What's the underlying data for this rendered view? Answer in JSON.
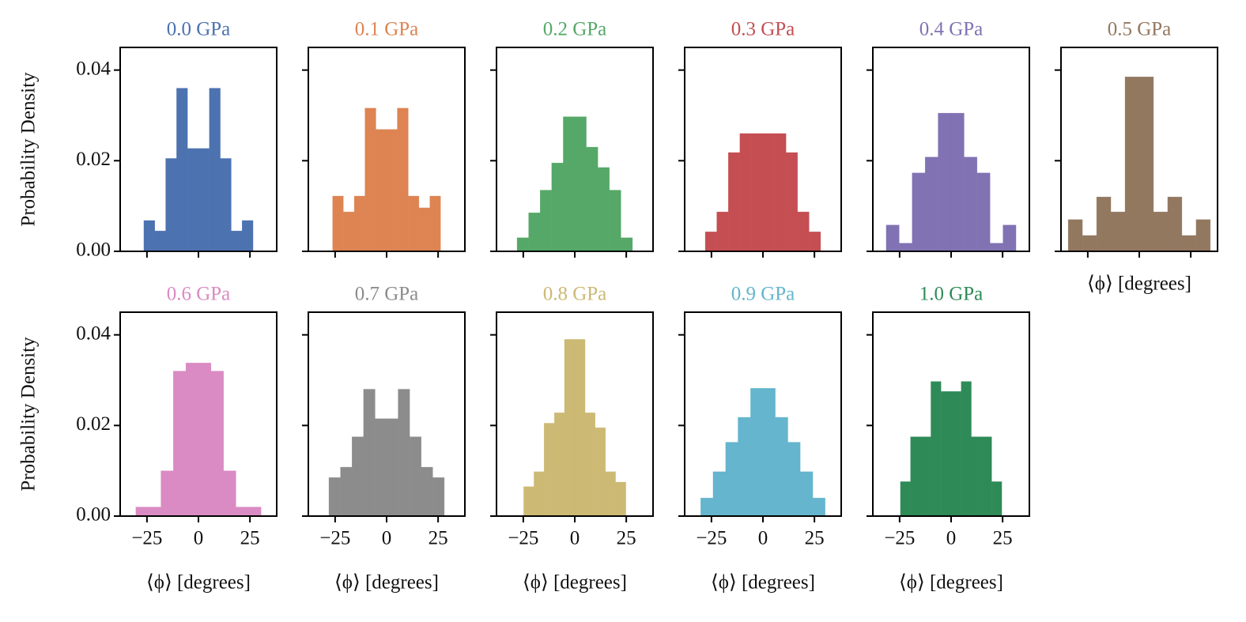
{
  "chart_data": [
    {
      "type": "histogram",
      "title": "0.0 GPa",
      "color": "#4c72b0",
      "ylabel": "Probability Density",
      "show_xtick_labels": false,
      "show_ytick_labels": true,
      "bins": [
        -26.5,
        -21.2,
        -15.9,
        -10.6,
        -5.3,
        0,
        5.3,
        10.6,
        15.9,
        21.2,
        26.5
      ],
      "values": [
        0.0068,
        0.0045,
        0.0205,
        0.036,
        0.0227,
        0.0227,
        0.036,
        0.0205,
        0.0045,
        0.0068
      ],
      "xlim": [
        -38,
        38
      ],
      "ylim": [
        0,
        0.045
      ],
      "xticks": [
        {
          "value": -25,
          "label": "−25"
        },
        0,
        25
      ],
      "yticks": [
        {
          "value": 0,
          "label": "0.00"
        },
        {
          "value": 0.02,
          "label": "0.02"
        },
        {
          "value": 0.04,
          "label": "0.04"
        }
      ]
    },
    {
      "type": "histogram",
      "title": "0.1 GPa",
      "color": "#dd8452",
      "show_xtick_labels": false,
      "show_ytick_labels": false,
      "bins": [
        -26.2,
        -21,
        -15.7,
        -10.5,
        -5.2,
        0,
        5.2,
        10.5,
        15.7,
        21,
        26.2
      ],
      "values": [
        0.0122,
        0.0087,
        0.0122,
        0.0316,
        0.0269,
        0.0269,
        0.0316,
        0.0122,
        0.0096,
        0.0122
      ],
      "xlim": [
        -38,
        38
      ],
      "ylim": [
        0,
        0.045
      ],
      "xticks": [
        {
          "value": -25,
          "label": "−25"
        },
        0,
        25
      ],
      "yticks": [
        {
          "value": 0,
          "label": "0.00"
        },
        {
          "value": 0.02,
          "label": "0.02"
        },
        {
          "value": 0.04,
          "label": "0.04"
        }
      ]
    },
    {
      "type": "histogram",
      "title": "0.2 GPa",
      "color": "#55a868",
      "show_xtick_labels": false,
      "show_ytick_labels": false,
      "bins": [
        -28,
        -22.4,
        -16.8,
        -11.2,
        -5.6,
        0,
        5.6,
        11.2,
        16.8,
        22.4,
        28
      ],
      "values": [
        0.003,
        0.0085,
        0.0135,
        0.0195,
        0.0297,
        0.0297,
        0.023,
        0.0185,
        0.0135,
        0.003
      ],
      "xlim": [
        -38,
        38
      ],
      "ylim": [
        0,
        0.045
      ],
      "xticks": [
        {
          "value": -25,
          "label": "−25"
        },
        0,
        25
      ],
      "yticks": [
        {
          "value": 0,
          "label": "0.00"
        },
        {
          "value": 0.02,
          "label": "0.02"
        },
        {
          "value": 0.04,
          "label": "0.04"
        }
      ]
    },
    {
      "type": "histogram",
      "title": "0.3 GPa",
      "color": "#c44e52",
      "show_xtick_labels": false,
      "show_ytick_labels": false,
      "bins": [
        -28,
        -22.4,
        -16.8,
        -11.2,
        -5.6,
        0,
        5.6,
        11.2,
        16.8,
        22.4,
        28
      ],
      "values": [
        0.0043,
        0.0087,
        0.0218,
        0.026,
        0.026,
        0.026,
        0.026,
        0.0218,
        0.0087,
        0.0043
      ],
      "xlim": [
        -38,
        38
      ],
      "ylim": [
        0,
        0.045
      ],
      "xticks": [
        {
          "value": -25,
          "label": "−25"
        },
        0,
        25
      ],
      "yticks": [
        {
          "value": 0,
          "label": "0.00"
        },
        {
          "value": 0.02,
          "label": "0.02"
        },
        {
          "value": 0.04,
          "label": "0.04"
        }
      ]
    },
    {
      "type": "histogram",
      "title": "0.4 GPa",
      "color": "#8172b3",
      "show_xtick_labels": false,
      "show_ytick_labels": false,
      "bins": [
        -31.5,
        -25.2,
        -18.9,
        -12.6,
        -6.3,
        0,
        6.3,
        12.6,
        18.9,
        25.2,
        31.5
      ],
      "values": [
        0.0058,
        0.0018,
        0.0173,
        0.0208,
        0.0305,
        0.0305,
        0.0208,
        0.0173,
        0.0018,
        0.0058
      ],
      "xlim": [
        -38,
        38
      ],
      "ylim": [
        0,
        0.045
      ],
      "xticks": [
        {
          "value": -25,
          "label": "−25"
        },
        0,
        25
      ],
      "yticks": [
        {
          "value": 0,
          "label": "0.00"
        },
        {
          "value": 0.02,
          "label": "0.02"
        },
        {
          "value": 0.04,
          "label": "0.04"
        }
      ]
    },
    {
      "type": "histogram",
      "title": "0.5 GPa",
      "color": "#937860",
      "xlabel": "⟨ϕ⟩ [degrees]",
      "show_xtick_labels": false,
      "show_ytick_labels": false,
      "bins": [
        -34.5,
        -27.6,
        -20.7,
        -13.8,
        -6.9,
        0,
        6.9,
        13.8,
        20.7,
        27.6,
        34.5
      ],
      "values": [
        0.007,
        0.0035,
        0.012,
        0.0087,
        0.0385,
        0.0385,
        0.0087,
        0.012,
        0.0035,
        0.007
      ],
      "xlim": [
        -38,
        38
      ],
      "ylim": [
        0,
        0.045
      ],
      "xticks": [
        {
          "value": -25,
          "label": "−25"
        },
        0,
        25
      ],
      "yticks": [
        {
          "value": 0,
          "label": "0.00"
        },
        {
          "value": 0.02,
          "label": "0.02"
        },
        {
          "value": 0.04,
          "label": "0.04"
        }
      ]
    },
    {
      "type": "histogram",
      "title": "0.6 GPa",
      "color": "#da8bc3",
      "ylabel": "Probability Density",
      "xlabel": "⟨ϕ⟩ [degrees]",
      "show_xtick_labels": true,
      "show_ytick_labels": true,
      "bins": [
        -30.4,
        -24.3,
        -18.2,
        -12.2,
        -6.1,
        0,
        6.1,
        12.2,
        18.2,
        24.3,
        30.4
      ],
      "values": [
        0.002,
        0.002,
        0.01,
        0.032,
        0.0338,
        0.0338,
        0.032,
        0.01,
        0.002,
        0.002
      ],
      "xlim": [
        -38,
        38
      ],
      "ylim": [
        0,
        0.045
      ],
      "xticks": [
        {
          "value": -25,
          "label": "−25"
        },
        0,
        25
      ],
      "yticks": [
        {
          "value": 0,
          "label": "0.00"
        },
        {
          "value": 0.02,
          "label": "0.02"
        },
        {
          "value": 0.04,
          "label": "0.04"
        }
      ]
    },
    {
      "type": "histogram",
      "title": "0.7 GPa",
      "color": "#8c8c8c",
      "xlabel": "⟨ϕ⟩ [degrees]",
      "show_xtick_labels": true,
      "show_ytick_labels": false,
      "bins": [
        -28,
        -22.4,
        -16.8,
        -11.2,
        -5.6,
        0,
        5.6,
        11.2,
        16.8,
        22.4,
        28
      ],
      "values": [
        0.0085,
        0.0108,
        0.0175,
        0.028,
        0.0215,
        0.0215,
        0.028,
        0.0175,
        0.0108,
        0.0085
      ],
      "xlim": [
        -38,
        38
      ],
      "ylim": [
        0,
        0.045
      ],
      "xticks": [
        {
          "value": -25,
          "label": "−25"
        },
        0,
        25
      ],
      "yticks": [
        {
          "value": 0,
          "label": "0.00"
        },
        {
          "value": 0.02,
          "label": "0.02"
        },
        {
          "value": 0.04,
          "label": "0.04"
        }
      ]
    },
    {
      "type": "histogram",
      "title": "0.8 GPa",
      "color": "#ccb974",
      "xlabel": "⟨ϕ⟩ [degrees]",
      "show_xtick_labels": true,
      "show_ytick_labels": false,
      "bins": [
        -24.8,
        -19.8,
        -14.9,
        -9.9,
        -5,
        0,
        5,
        9.9,
        14.9,
        19.8,
        24.8
      ],
      "values": [
        0.0065,
        0.0098,
        0.0205,
        0.0228,
        0.039,
        0.039,
        0.0228,
        0.0195,
        0.0098,
        0.0075
      ],
      "xlim": [
        -38,
        38
      ],
      "ylim": [
        0,
        0.045
      ],
      "xticks": [
        {
          "value": -25,
          "label": "−25"
        },
        0,
        25
      ],
      "yticks": [
        {
          "value": 0,
          "label": "0.00"
        },
        {
          "value": 0.02,
          "label": "0.02"
        },
        {
          "value": 0.04,
          "label": "0.04"
        }
      ]
    },
    {
      "type": "histogram",
      "title": "0.9 GPa",
      "color": "#64b5cd",
      "xlabel": "⟨ϕ⟩ [degrees]",
      "show_xtick_labels": true,
      "show_ytick_labels": false,
      "bins": [
        -30.2,
        -24.2,
        -18.1,
        -12.1,
        -6,
        0,
        6,
        12.1,
        18.1,
        24.2,
        30.2
      ],
      "values": [
        0.004,
        0.0098,
        0.0163,
        0.0218,
        0.0282,
        0.0282,
        0.0218,
        0.0163,
        0.0098,
        0.004
      ],
      "xlim": [
        -38,
        38
      ],
      "ylim": [
        0,
        0.045
      ],
      "xticks": [
        {
          "value": -25,
          "label": "−25"
        },
        0,
        25
      ],
      "yticks": [
        {
          "value": 0,
          "label": "0.00"
        },
        {
          "value": 0.02,
          "label": "0.02"
        },
        {
          "value": 0.04,
          "label": "0.04"
        }
      ]
    },
    {
      "type": "histogram",
      "title": "1.0 GPa",
      "color": "#2e8b57",
      "xlabel": "⟨ϕ⟩ [degrees]",
      "show_xtick_labels": true,
      "show_ytick_labels": false,
      "bins": [
        -24.6,
        -19.7,
        -14.8,
        -9.8,
        -4.9,
        0,
        4.9,
        9.8,
        14.8,
        19.7,
        24.6
      ],
      "values": [
        0.0076,
        0.0175,
        0.0175,
        0.0297,
        0.0275,
        0.0275,
        0.0297,
        0.0175,
        0.0175,
        0.0076
      ],
      "xlim": [
        -38,
        38
      ],
      "ylim": [
        0,
        0.045
      ],
      "xticks": [
        {
          "value": -25,
          "label": "−25"
        },
        0,
        25
      ],
      "yticks": [
        {
          "value": 0,
          "label": "0.00"
        },
        {
          "value": 0.02,
          "label": "0.02"
        },
        {
          "value": 0.04,
          "label": "0.04"
        }
      ]
    }
  ]
}
